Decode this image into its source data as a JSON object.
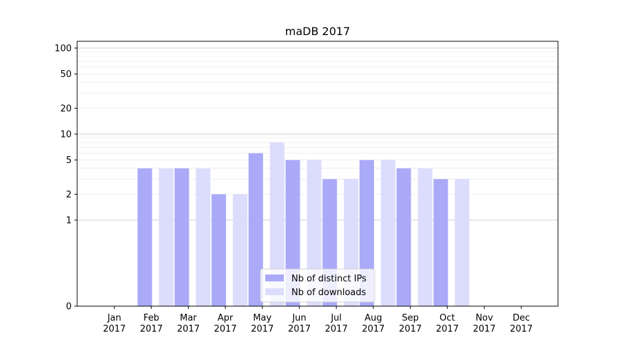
{
  "chart_data": {
    "type": "bar",
    "title": "maDB 2017",
    "xlabel": "",
    "ylabel": "",
    "y_scale": "symlog",
    "ylim": [
      0,
      120
    ],
    "y_ticks": [
      0,
      1,
      2,
      5,
      10,
      20,
      50,
      100
    ],
    "grid": true,
    "legend_position": "lower-center",
    "categories": [
      {
        "month": "Jan",
        "year": "2017"
      },
      {
        "month": "Feb",
        "year": "2017"
      },
      {
        "month": "Mar",
        "year": "2017"
      },
      {
        "month": "Apr",
        "year": "2017"
      },
      {
        "month": "May",
        "year": "2017"
      },
      {
        "month": "Jun",
        "year": "2017"
      },
      {
        "month": "Jul",
        "year": "2017"
      },
      {
        "month": "Aug",
        "year": "2017"
      },
      {
        "month": "Sep",
        "year": "2017"
      },
      {
        "month": "Oct",
        "year": "2017"
      },
      {
        "month": "Nov",
        "year": "2017"
      },
      {
        "month": "Dec",
        "year": "2017"
      }
    ],
    "series": [
      {
        "name": "Nb of distinct IPs",
        "color": "#aaaaf8",
        "values": [
          0,
          4,
          4,
          2,
          6,
          5,
          3,
          5,
          4,
          3,
          0,
          0
        ]
      },
      {
        "name": "Nb of downloads",
        "color": "#dcdcfc",
        "values": [
          0,
          4,
          4,
          2,
          8,
          5,
          3,
          5,
          4,
          3,
          0,
          0
        ]
      }
    ]
  }
}
